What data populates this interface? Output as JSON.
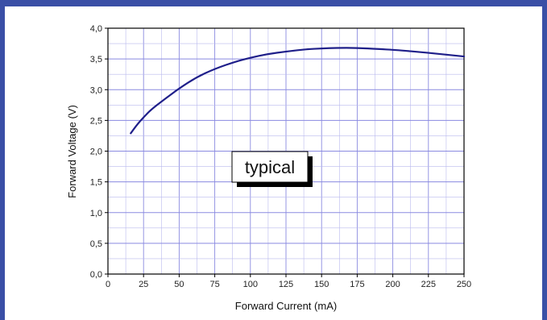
{
  "chart_data": {
    "type": "line",
    "xlabel": "Forward Current (mA)",
    "ylabel": "Forward Voltage (V)",
    "annotation": "typical",
    "xlim": [
      0,
      250
    ],
    "ylim": [
      0.0,
      4.0
    ],
    "x_ticks": [
      "0",
      "25",
      "50",
      "75",
      "100",
      "125",
      "150",
      "175",
      "200",
      "225",
      "250"
    ],
    "y_ticks": [
      "0,0",
      "0,5",
      "1,0",
      "1,5",
      "2,0",
      "2,5",
      "3,0",
      "3,5",
      "4,0"
    ],
    "grid": true,
    "series": [
      {
        "x": [
          16,
          20,
          25,
          30,
          40,
          50,
          62,
          75,
          90,
          100,
          112,
          125,
          140,
          150,
          160,
          175,
          190,
          200,
          225,
          250
        ],
        "y": [
          2.29,
          2.42,
          2.55,
          2.67,
          2.85,
          3.02,
          3.2,
          3.34,
          3.46,
          3.52,
          3.58,
          3.62,
          3.66,
          3.67,
          3.68,
          3.68,
          3.66,
          3.65,
          3.6,
          3.54
        ],
        "color": "#1f1f8a"
      }
    ]
  }
}
